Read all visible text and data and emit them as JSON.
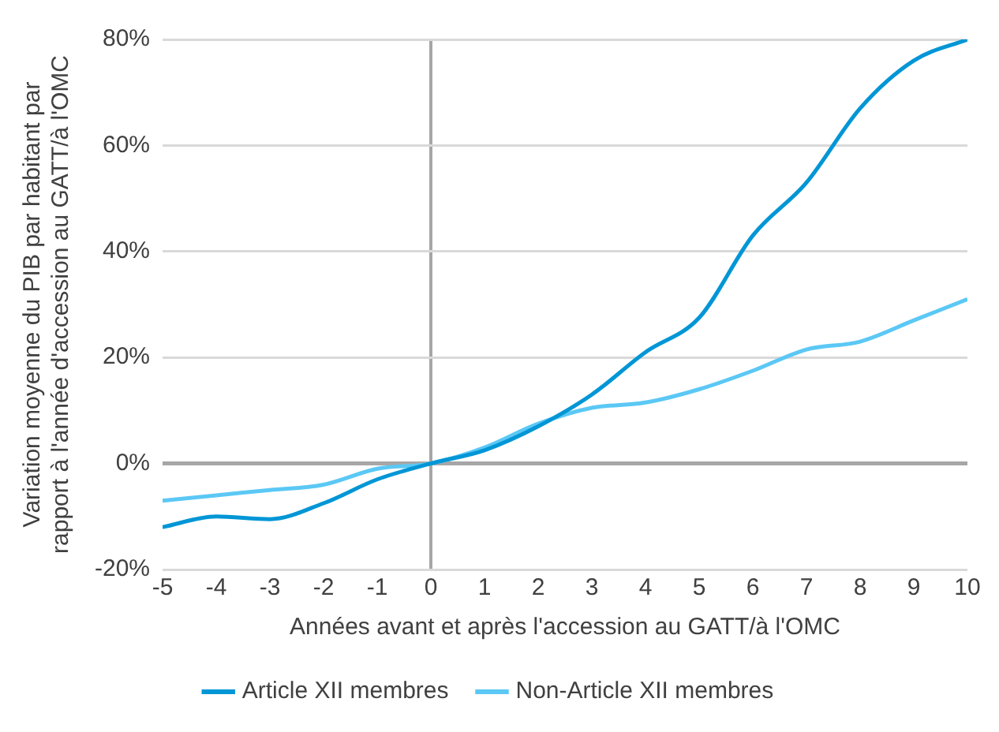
{
  "chart_data": {
    "type": "line",
    "xlabel": "Années avant et après l'accession au GATT/à l'OMC",
    "ylabel": "Variation moyenne du PIB par habitant par rapport à l'année d'accession au GATT/à l'OMC",
    "x": [
      -5,
      -4,
      -3,
      -2,
      -1,
      0,
      1,
      2,
      3,
      4,
      5,
      6,
      7,
      8,
      9,
      10
    ],
    "series": [
      {
        "name": "Article XII membres",
        "color": "#0096d6",
        "values": [
          -12,
          -10,
          -10.5,
          -7.5,
          -3,
          0,
          2.5,
          7,
          13,
          21,
          27.5,
          43,
          53,
          67,
          76,
          80
        ]
      },
      {
        "name": "Non-Article XII membres",
        "color": "#5bc8f5",
        "values": [
          -7,
          -6,
          -5,
          -4,
          -1,
          0,
          3,
          7.5,
          10.5,
          11.5,
          14,
          17.5,
          21.5,
          23,
          27,
          31
        ]
      }
    ],
    "xlim": [
      -5,
      10
    ],
    "xticks": [
      -5,
      -4,
      -3,
      -2,
      -1,
      0,
      1,
      2,
      3,
      4,
      5,
      6,
      7,
      8,
      9,
      10
    ],
    "ylim": [
      -20,
      80
    ],
    "yticks": [
      {
        "value": -20,
        "label": "-20%"
      },
      {
        "value": 0,
        "label": "0%"
      },
      {
        "value": 20,
        "label": "20%"
      },
      {
        "value": 40,
        "label": "40%"
      },
      {
        "value": 60,
        "label": "60%"
      },
      {
        "value": 80,
        "label": "80%"
      }
    ],
    "grid": "y",
    "legend": "bottom",
    "marker": "none",
    "line_style": "solid"
  }
}
